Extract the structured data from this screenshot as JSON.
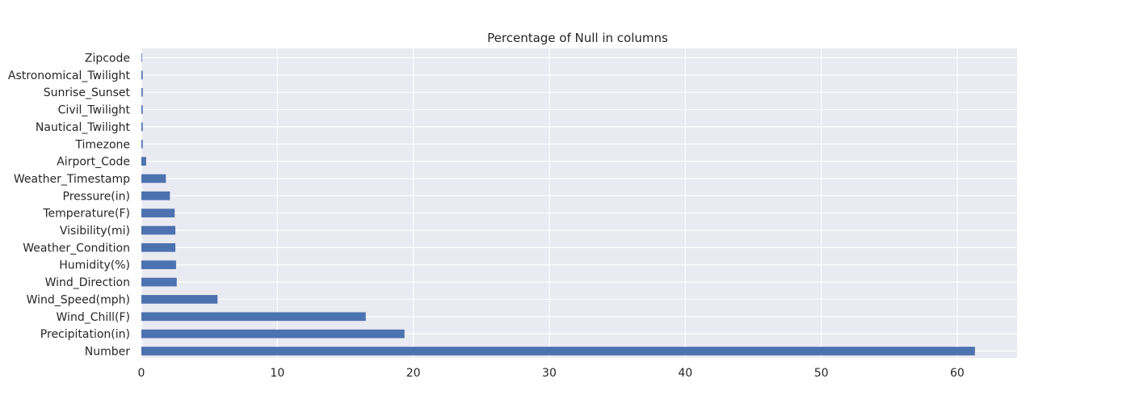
{
  "chart_data": {
    "type": "bar",
    "orientation": "horizontal",
    "title": "Percentage of Null in columns",
    "xlabel": "",
    "ylabel": "",
    "xlim": [
      0,
      64.4
    ],
    "x_ticks": [
      0,
      10,
      20,
      30,
      40,
      50,
      60
    ],
    "grid": true,
    "colors": {
      "bar": "#4c72b0",
      "plot_background": "#eaeaf2",
      "grid": "#ffffff"
    },
    "categories": [
      "Zipcode",
      "Astronomical_Twilight",
      "Sunrise_Sunset",
      "Civil_Twilight",
      "Nautical_Twilight",
      "Timezone",
      "Airport_Code",
      "Weather_Timestamp",
      "Pressure(in)",
      "Temperature(F)",
      "Visibility(mi)",
      "Weather_Condition",
      "Humidity(%)",
      "Wind_Direction",
      "Wind_Speed(mph)",
      "Wind_Chill(F)",
      "Precipitation(in)",
      "Number"
    ],
    "values": [
      0.05,
      0.1,
      0.1,
      0.1,
      0.1,
      0.1,
      0.35,
      1.8,
      2.1,
      2.45,
      2.5,
      2.5,
      2.55,
      2.6,
      5.6,
      16.5,
      19.35,
      61.3
    ]
  }
}
